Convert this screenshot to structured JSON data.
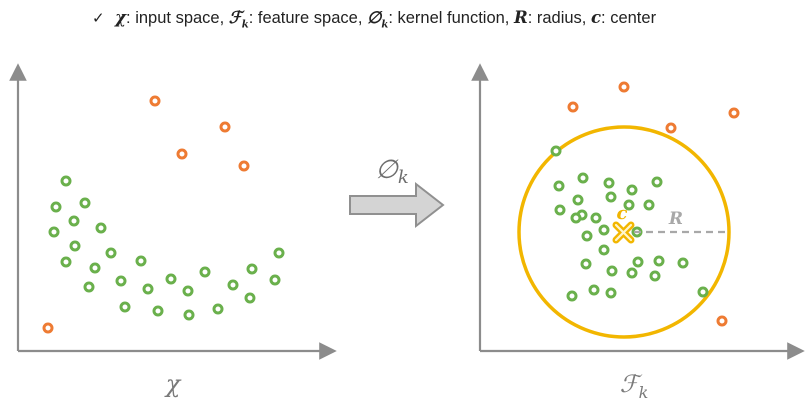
{
  "legend": {
    "check": "✓",
    "items": [
      {
        "symbol": "χ",
        "sub": "",
        "text": ": input space, "
      },
      {
        "symbol": "ℱ",
        "sub": "k",
        "text": ": feature space, "
      },
      {
        "symbol": "∅",
        "sub": "k",
        "text": ": kernel function, "
      },
      {
        "symbol": "R",
        "sub": "",
        "text": ": radius, "
      },
      {
        "symbol": "c",
        "sub": "",
        "text": ": center"
      }
    ]
  },
  "left_panel": {
    "axis_label": "χ"
  },
  "right_panel": {
    "axis_label": "ℱ",
    "axis_label_sub": "k",
    "center_label": "c",
    "radius_label": "R"
  },
  "mapping": {
    "label": "∅",
    "label_sub": "k"
  },
  "colors": {
    "normal": "#6ab04c",
    "anomaly": "#ee7b33",
    "boundary": "#f2b600",
    "axis": "#8c8c8c",
    "arrow_fill": "#d4d4d4",
    "arrow_stroke": "#909090",
    "radius_line": "#a8a8a8"
  }
}
